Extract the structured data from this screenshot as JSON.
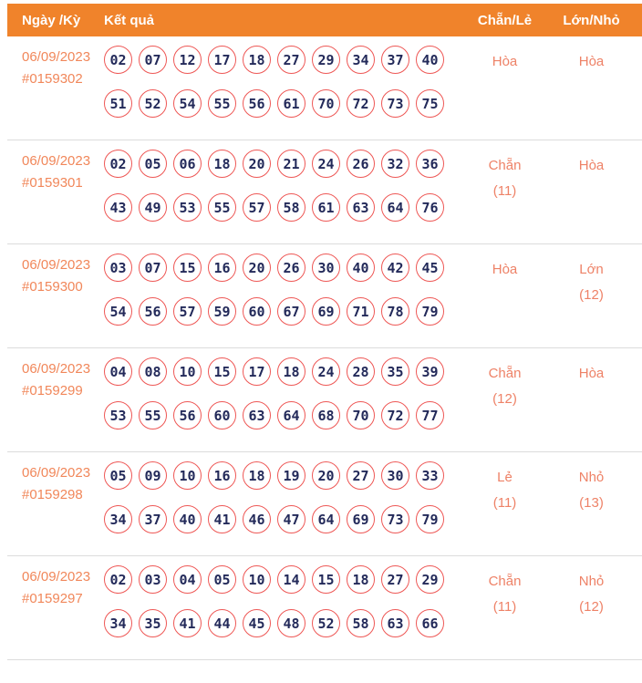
{
  "header": {
    "col_date": "Ngày /Kỳ",
    "col_result": "Kết quả",
    "col_chan_le": "Chẵn/Lẻ",
    "col_lon_nho": "Lớn/Nhỏ"
  },
  "colors": {
    "header_bg": "#F0832B",
    "header_text": "#FFFFFF",
    "date_text": "#F1875A",
    "status_text": "#EE8267",
    "ball_border": "#EE5755",
    "ball_text": "#232A5A",
    "row_divider": "#DCDCDC"
  },
  "rows": [
    {
      "date": "06/09/2023",
      "draw_id": "#0159302",
      "numbers_line1": [
        "02",
        "07",
        "12",
        "17",
        "18",
        "27",
        "29",
        "34",
        "37",
        "40"
      ],
      "numbers_line2": [
        "51",
        "52",
        "54",
        "55",
        "56",
        "61",
        "70",
        "72",
        "73",
        "75"
      ],
      "chan_le_label": "Hòa",
      "chan_le_count": "",
      "lon_nho_label": "Hòa",
      "lon_nho_count": ""
    },
    {
      "date": "06/09/2023",
      "draw_id": "#0159301",
      "numbers_line1": [
        "02",
        "05",
        "06",
        "18",
        "20",
        "21",
        "24",
        "26",
        "32",
        "36"
      ],
      "numbers_line2": [
        "43",
        "49",
        "53",
        "55",
        "57",
        "58",
        "61",
        "63",
        "64",
        "76"
      ],
      "chan_le_label": "Chẵn",
      "chan_le_count": "(11)",
      "lon_nho_label": "Hòa",
      "lon_nho_count": ""
    },
    {
      "date": "06/09/2023",
      "draw_id": "#0159300",
      "numbers_line1": [
        "03",
        "07",
        "15",
        "16",
        "20",
        "26",
        "30",
        "40",
        "42",
        "45"
      ],
      "numbers_line2": [
        "54",
        "56",
        "57",
        "59",
        "60",
        "67",
        "69",
        "71",
        "78",
        "79"
      ],
      "chan_le_label": "Hòa",
      "chan_le_count": "",
      "lon_nho_label": "Lớn",
      "lon_nho_count": "(12)"
    },
    {
      "date": "06/09/2023",
      "draw_id": "#0159299",
      "numbers_line1": [
        "04",
        "08",
        "10",
        "15",
        "17",
        "18",
        "24",
        "28",
        "35",
        "39"
      ],
      "numbers_line2": [
        "53",
        "55",
        "56",
        "60",
        "63",
        "64",
        "68",
        "70",
        "72",
        "77"
      ],
      "chan_le_label": "Chẵn",
      "chan_le_count": "(12)",
      "lon_nho_label": "Hòa",
      "lon_nho_count": ""
    },
    {
      "date": "06/09/2023",
      "draw_id": "#0159298",
      "numbers_line1": [
        "05",
        "09",
        "10",
        "16",
        "18",
        "19",
        "20",
        "27",
        "30",
        "33"
      ],
      "numbers_line2": [
        "34",
        "37",
        "40",
        "41",
        "46",
        "47",
        "64",
        "69",
        "73",
        "79"
      ],
      "chan_le_label": "Lẻ",
      "chan_le_count": "(11)",
      "lon_nho_label": "Nhỏ",
      "lon_nho_count": "(13)"
    },
    {
      "date": "06/09/2023",
      "draw_id": "#0159297",
      "numbers_line1": [
        "02",
        "03",
        "04",
        "05",
        "10",
        "14",
        "15",
        "18",
        "27",
        "29"
      ],
      "numbers_line2": [
        "34",
        "35",
        "41",
        "44",
        "45",
        "48",
        "52",
        "58",
        "63",
        "66"
      ],
      "chan_le_label": "Chẵn",
      "chan_le_count": "(11)",
      "lon_nho_label": "Nhỏ",
      "lon_nho_count": "(12)"
    }
  ]
}
